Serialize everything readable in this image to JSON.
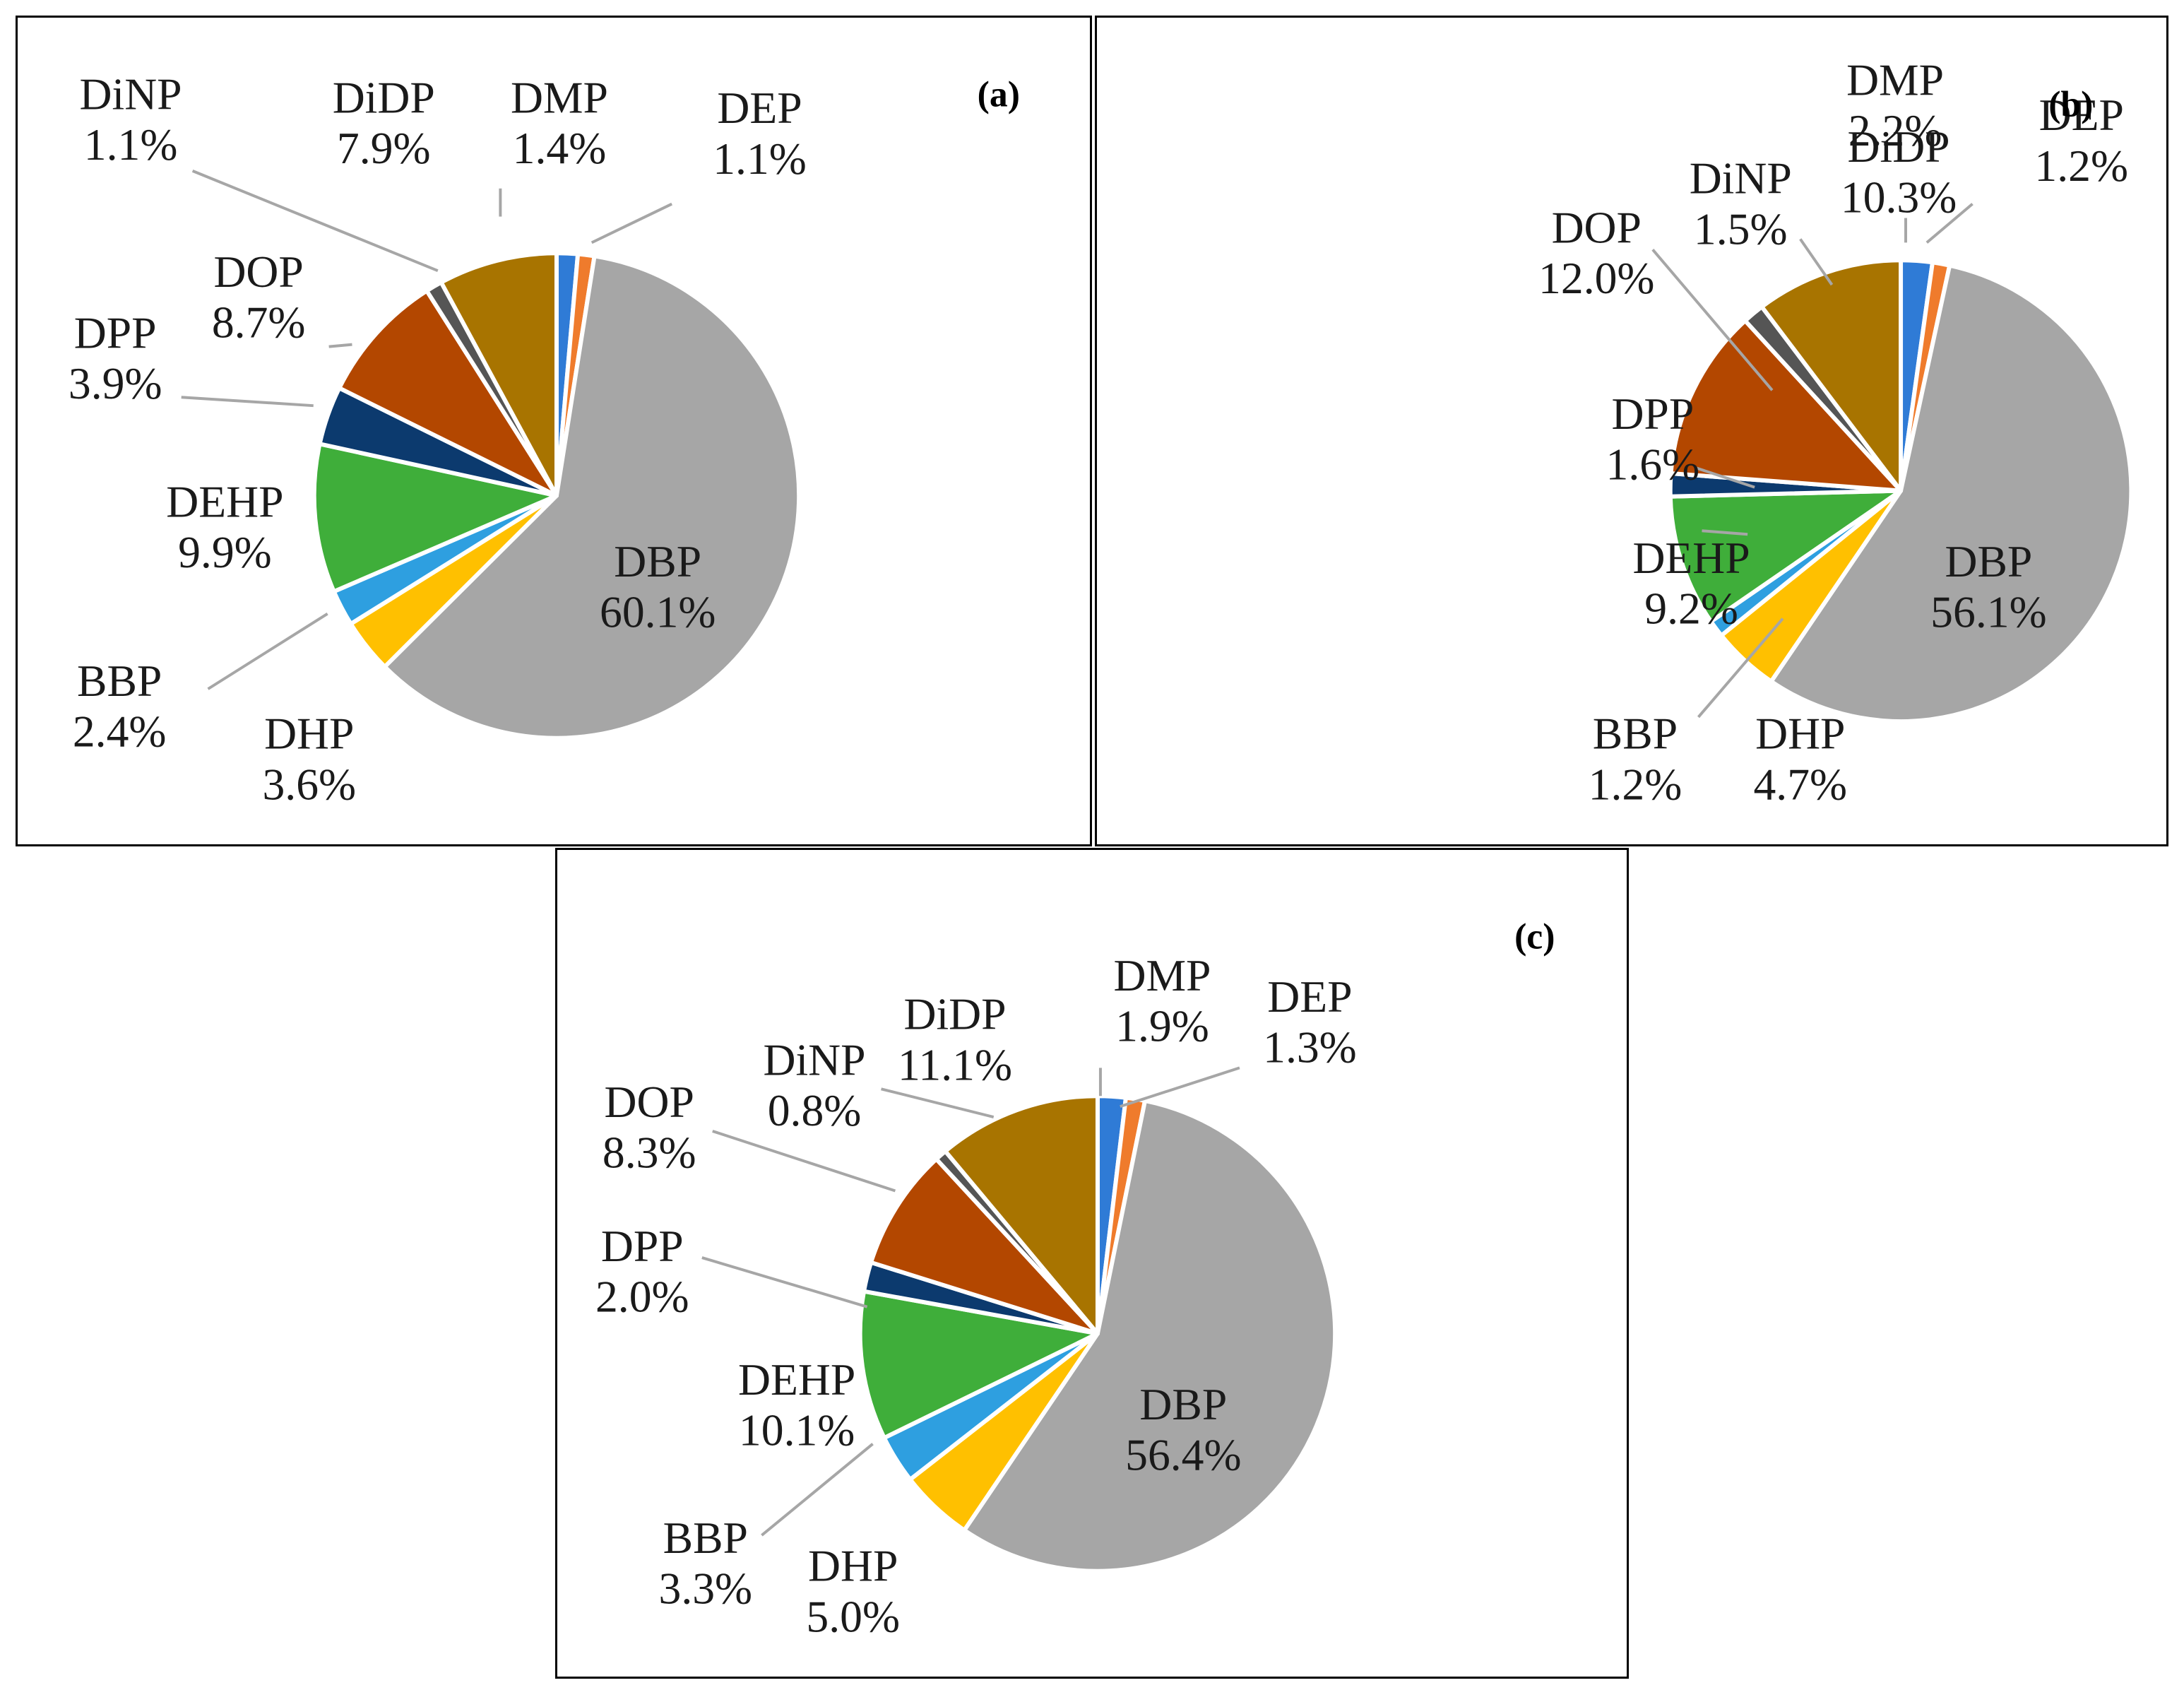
{
  "chart_data": [
    {
      "type": "pie",
      "panel_label": "(a)",
      "slices": [
        {
          "name": "DMP",
          "pct": "1.4%",
          "value": 1.4
        },
        {
          "name": "DEP",
          "pct": "1.1%",
          "value": 1.1
        },
        {
          "name": "DBP",
          "pct": "60.1%",
          "value": 60.1
        },
        {
          "name": "DHP",
          "pct": "3.6%",
          "value": 3.6
        },
        {
          "name": "BBP",
          "pct": "2.4%",
          "value": 2.4
        },
        {
          "name": "DEHP",
          "pct": "9.9%",
          "value": 9.9
        },
        {
          "name": "DPP",
          "pct": "3.9%",
          "value": 3.9
        },
        {
          "name": "DOP",
          "pct": "8.7%",
          "value": 8.7
        },
        {
          "name": "DiNP",
          "pct": "1.1%",
          "value": 1.1
        },
        {
          "name": "DiDP",
          "pct": "7.9%",
          "value": 7.9
        }
      ]
    },
    {
      "type": "pie",
      "panel_label": "(b)",
      "slices": [
        {
          "name": "DMP",
          "pct": "2.2%",
          "value": 2.2
        },
        {
          "name": "DEP",
          "pct": "1.2%",
          "value": 1.2
        },
        {
          "name": "DBP",
          "pct": "56.1%",
          "value": 56.1
        },
        {
          "name": "DHP",
          "pct": "4.7%",
          "value": 4.7
        },
        {
          "name": "BBP",
          "pct": "1.2%",
          "value": 1.2
        },
        {
          "name": "DEHP",
          "pct": "9.2%",
          "value": 9.2
        },
        {
          "name": "DPP",
          "pct": "1.6%",
          "value": 1.6
        },
        {
          "name": "DOP",
          "pct": "12.0%",
          "value": 12.0
        },
        {
          "name": "DiNP",
          "pct": "1.5%",
          "value": 1.5
        },
        {
          "name": "DiDP",
          "pct": "10.3%",
          "value": 10.3
        }
      ]
    },
    {
      "type": "pie",
      "panel_label": "(c)",
      "slices": [
        {
          "name": "DMP",
          "pct": "1.9%",
          "value": 1.9
        },
        {
          "name": "DEP",
          "pct": "1.3%",
          "value": 1.3
        },
        {
          "name": "DBP",
          "pct": "56.4%",
          "value": 56.4
        },
        {
          "name": "DHP",
          "pct": "5.0%",
          "value": 5.0
        },
        {
          "name": "BBP",
          "pct": "3.3%",
          "value": 3.3
        },
        {
          "name": "DEHP",
          "pct": "10.1%",
          "value": 10.1
        },
        {
          "name": "DPP",
          "pct": "2.0%",
          "value": 2.0
        },
        {
          "name": "DOP",
          "pct": "8.3%",
          "value": 8.3
        },
        {
          "name": "DiNP",
          "pct": "0.8%",
          "value": 0.8
        },
        {
          "name": "DiDP",
          "pct": "11.1%",
          "value": 11.1
        }
      ]
    }
  ],
  "colors": {
    "DMP": "#2f7bd6",
    "DEP": "#ef7b2c",
    "DBP": "#a6a6a6",
    "DHP": "#ffc000",
    "BBP": "#2e9fe0",
    "DEHP": "#3fae3a",
    "DPP": "#0c3a6e",
    "DOP": "#b34700",
    "DiNP": "#555555",
    "DiDP": "#a87400",
    "leader": "#a6a6a6",
    "text": "#1a1a1a"
  }
}
